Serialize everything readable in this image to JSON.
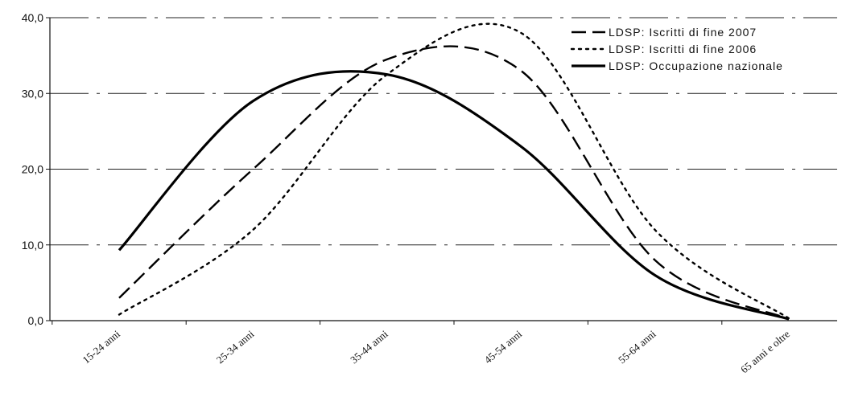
{
  "chart_data": {
    "type": "line",
    "title": "",
    "xlabel": "",
    "ylabel": "",
    "categories": [
      "15-24 anni",
      "25-34 anni",
      "35-44 anni",
      "45-54 anni",
      "55-64 anni",
      "65 anni e oltre"
    ],
    "y_tick_labels": [
      "0,0",
      "10,0",
      "20,0",
      "30,0",
      "40,0"
    ],
    "y_tick_values": [
      0,
      10,
      20,
      30,
      40
    ],
    "ylim": [
      0,
      40
    ],
    "grid": true,
    "legend_position": "top-right",
    "series": [
      {
        "name": "LDSP: Iscritti di fine 2007",
        "values": [
          3.0,
          20.0,
          34.5,
          33.0,
          8.0,
          0.2
        ],
        "style": "dashed",
        "color": "#000000"
      },
      {
        "name": "LDSP: Iscritti di fine 2006",
        "values": [
          0.8,
          12.0,
          32.5,
          38.0,
          12.0,
          0.3
        ],
        "style": "dotted",
        "color": "#000000"
      },
      {
        "name": "LDSP: Occupazione nazionale",
        "values": [
          9.3,
          29.0,
          32.5,
          23.0,
          6.0,
          0.2
        ],
        "style": "solid",
        "color": "#000000"
      }
    ]
  }
}
